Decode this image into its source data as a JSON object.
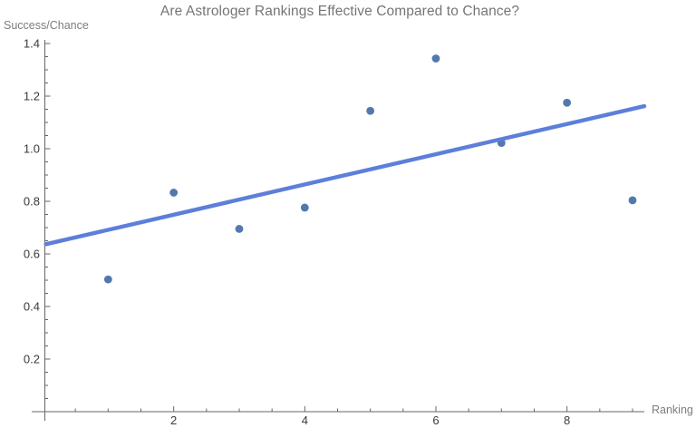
{
  "chart_data": {
    "type": "scatter",
    "title": "Are Astrologer Rankings Effective Compared to Chance?",
    "ylabel": "Success/Chance",
    "xlabel": "Ranking",
    "legend": "none",
    "grid": "off",
    "xlim": [
      0,
      9.3
    ],
    "ylim": [
      0,
      1.45
    ],
    "points": [
      [
        1,
        0.503
      ],
      [
        2,
        0.833
      ],
      [
        3,
        0.695
      ],
      [
        4,
        0.776
      ],
      [
        5,
        1.144
      ],
      [
        6,
        1.343
      ],
      [
        7,
        1.022
      ],
      [
        8,
        1.175
      ],
      [
        9,
        0.804
      ]
    ],
    "fit_line": {
      "intercept": 0.634,
      "slope": 0.0575,
      "x_start": 0.05,
      "x_end": 9.18
    },
    "x_ticks_major": [
      2,
      4,
      6,
      8
    ],
    "x_tick_labels": [
      "2",
      "4",
      "6",
      "8"
    ],
    "x_minor_step": 0.5,
    "x_minor_max": 9.0,
    "y_ticks_major": [
      0.2,
      0.4,
      0.6,
      0.8,
      1.0,
      1.2,
      1.4
    ],
    "y_tick_labels": [
      "0.2",
      "0.4",
      "0.6",
      "0.8",
      "1.0",
      "1.2",
      "1.4"
    ],
    "y_minor_step": 0.05,
    "y_minor_max": 1.41,
    "colors": {
      "point": "#5379ac",
      "line": "#5d7fd9",
      "axis": "#666666",
      "tick_label": "#3a3a3a",
      "title": "#757575",
      "axis_label": "#7d7d7d"
    }
  }
}
